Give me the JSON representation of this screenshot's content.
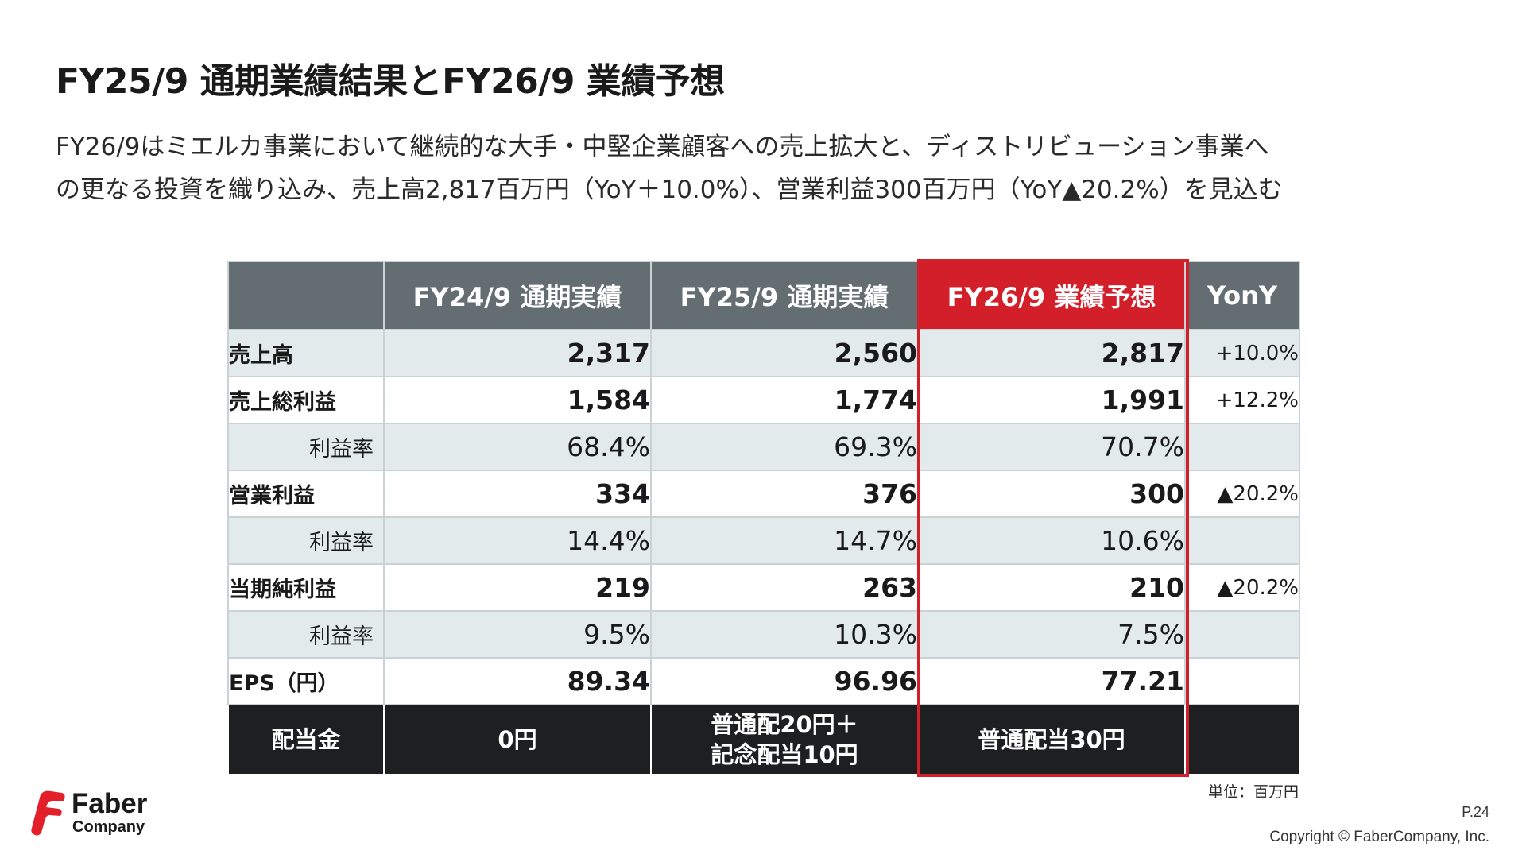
{
  "slide": {
    "title": "FY25/9 通期業績結果とFY26/9 業績予想",
    "description_lines": [
      "FY26/9はミエルカ事業において継続的な大手・中堅企業顧客への売上拡大と、ディストリビューション事業へ",
      "の更なる投資を織り込み、売上高2,817百万円（YoY＋10.0%）、営業利益300百万円（YoY▲20.2%）を見込む"
    ]
  },
  "table": {
    "headers": [
      "",
      "FY24/9 通期実績",
      "FY25/9 通期実績",
      "FY26/9 業績予想",
      "YonY"
    ],
    "rows": [
      {
        "label": "売上高",
        "fy24": "2,317",
        "fy25": "2,560",
        "fy26": "2,817",
        "yoy": "+10.0%"
      },
      {
        "label": "売上総利益",
        "fy24": "1,584",
        "fy25": "1,774",
        "fy26": "1,991",
        "yoy": "+12.2%"
      },
      {
        "label": "利益率",
        "fy24": "68.4%",
        "fy25": "69.3%",
        "fy26": "70.7%",
        "yoy": ""
      },
      {
        "label": "営業利益",
        "fy24": "334",
        "fy25": "376",
        "fy26": "300",
        "yoy": "▲20.2%"
      },
      {
        "label": "利益率",
        "fy24": "14.4%",
        "fy25": "14.7%",
        "fy26": "10.6%",
        "yoy": ""
      },
      {
        "label": "当期純利益",
        "fy24": "219",
        "fy25": "263",
        "fy26": "210",
        "yoy": "▲20.2%"
      },
      {
        "label": "利益率",
        "fy24": "9.5%",
        "fy25": "10.3%",
        "fy26": "7.5%",
        "yoy": ""
      },
      {
        "label": "EPS（円）",
        "fy24": "89.34",
        "fy25": "96.96",
        "fy26": "77.21",
        "yoy": ""
      }
    ],
    "dividend": {
      "label": "配当金",
      "fy24": "0円",
      "fy25_line1": "普通配20円＋",
      "fy25_line2": "記念配当10円",
      "fy26": "普通配当30円",
      "yoy": ""
    },
    "unit_note": "単位：百万円"
  },
  "colors": {
    "header_gray": "#646d72",
    "highlight_red": "#d21f2a",
    "row_alt": "#e3eaeb",
    "dividend_row": "#1e1f21"
  },
  "footer": {
    "logo_line1": "Faber",
    "logo_line2": "Company",
    "page": "P.24",
    "copyright": "Copyright © FaberCompany, Inc."
  }
}
